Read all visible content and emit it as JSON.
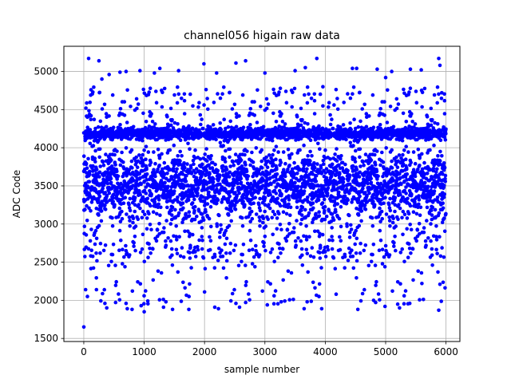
{
  "chart_data": {
    "type": "scatter",
    "title": "channel056 higain raw data",
    "xlabel": "sample number",
    "ylabel": "ADC Code",
    "xlim": [
      -330,
      6230
    ],
    "ylim": [
      1460,
      5330
    ],
    "xticks": [
      0,
      1000,
      2000,
      3000,
      4000,
      5000,
      6000
    ],
    "yticks": [
      1500,
      2000,
      2500,
      3000,
      3500,
      4000,
      4500,
      5000
    ],
    "grid": true,
    "marker_color": "#0000ff",
    "n_samples": 6000,
    "series": [
      {
        "description": "ADC code per sample; dense band ~3000-4400 with a concentration near 4100-4250",
        "points": [
          [
            0,
            1650
          ],
          [
            80,
            5170
          ],
          [
            120,
            4760
          ],
          [
            150,
            4730
          ],
          [
            250,
            5140
          ],
          [
            300,
            4900
          ],
          [
            420,
            4960
          ],
          [
            600,
            4990
          ],
          [
            700,
            5000
          ],
          [
            930,
            5010
          ],
          [
            1170,
            4980
          ],
          [
            1260,
            5040
          ],
          [
            1570,
            5010
          ],
          [
            1990,
            5100
          ],
          [
            2200,
            4980
          ],
          [
            2520,
            5110
          ],
          [
            2680,
            5140
          ],
          [
            3000,
            4980
          ],
          [
            3500,
            5010
          ],
          [
            3670,
            5050
          ],
          [
            3860,
            5170
          ],
          [
            3960,
            4800
          ],
          [
            4450,
            5040
          ],
          [
            4520,
            5040
          ],
          [
            4860,
            5030
          ],
          [
            5000,
            4920
          ],
          [
            5100,
            5000
          ],
          [
            5410,
            5030
          ],
          [
            5590,
            5020
          ],
          [
            5880,
            5170
          ],
          [
            5900,
            5080
          ],
          [
            5930,
            4720
          ],
          [
            30,
            2140
          ],
          [
            60,
            2050
          ],
          [
            210,
            2140
          ],
          [
            350,
            1960
          ],
          [
            380,
            1900
          ],
          [
            700,
            1960
          ],
          [
            720,
            1890
          ],
          [
            800,
            1880
          ],
          [
            950,
            1930
          ],
          [
            1000,
            1850
          ],
          [
            1060,
            1990
          ],
          [
            1320,
            1910
          ],
          [
            1360,
            1980
          ],
          [
            1470,
            1880
          ],
          [
            1740,
            1880
          ],
          [
            2000,
            2110
          ],
          [
            2170,
            1910
          ],
          [
            2230,
            1890
          ],
          [
            2520,
            1960
          ],
          [
            2580,
            1910
          ],
          [
            3040,
            1940
          ],
          [
            3270,
            1980
          ],
          [
            3330,
            1990
          ],
          [
            3650,
            1890
          ],
          [
            3700,
            1980
          ],
          [
            3940,
            1890
          ],
          [
            4180,
            2080
          ],
          [
            4540,
            1880
          ],
          [
            4800,
            2000
          ],
          [
            4990,
            1920
          ],
          [
            5200,
            1950
          ],
          [
            5230,
            1900
          ],
          [
            5400,
            1960
          ],
          [
            5600,
            2220
          ],
          [
            5900,
            2210
          ],
          [
            5880,
            1870
          ]
        ]
      }
    ]
  }
}
